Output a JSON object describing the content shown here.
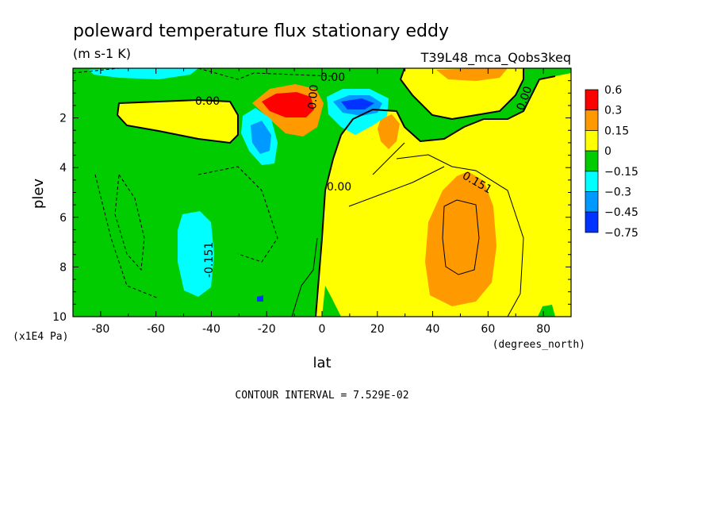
{
  "chart_data": {
    "type": "heatmap",
    "title": "poleward temperature flux stationary eddy",
    "units": "(m s-1 K)",
    "run_label": "T39L48_mca_Qobs3keq",
    "xlabel": "lat",
    "ylabel": "plev",
    "x_unit_label": "(degrees_north)",
    "y_unit_label": "(x1E4 Pa)",
    "xlim": [
      -90,
      90
    ],
    "ylim": [
      10,
      0
    ],
    "x_ticks": [
      -80,
      -60,
      -40,
      -20,
      0,
      20,
      40,
      60,
      80
    ],
    "y_ticks": [
      2,
      4,
      6,
      8,
      10
    ],
    "contour_interval_text": "CONTOUR INTERVAL = 7.529E-02",
    "contour_labels": [
      "0.00",
      "0.00",
      "0.00",
      "0.00",
      "0.00",
      "-0.151",
      "0.151"
    ],
    "legend": {
      "levels": [
        "0.6",
        "0.3",
        "0.15",
        "0",
        "−0.15",
        "−0.3",
        "−0.45",
        "−0.75"
      ],
      "colors": [
        "#ff0000",
        "#ff9900",
        "#ffff00",
        "#00cc00",
        "#00ffff",
        "#0099ff",
        "#0033ff"
      ]
    },
    "regions": [
      {
        "kind": "green",
        "value": "0 to -0.15"
      },
      {
        "kind": "yellow",
        "value": "0 to 0.15"
      },
      {
        "kind": "orange",
        "value": "0.15 to 0.3"
      },
      {
        "kind": "red",
        "value": "0.3 to 0.6"
      },
      {
        "kind": "cyan",
        "value": "-0.15 to -0.3"
      },
      {
        "kind": "blue",
        "value": "-0.3 to -0.45"
      }
    ]
  }
}
